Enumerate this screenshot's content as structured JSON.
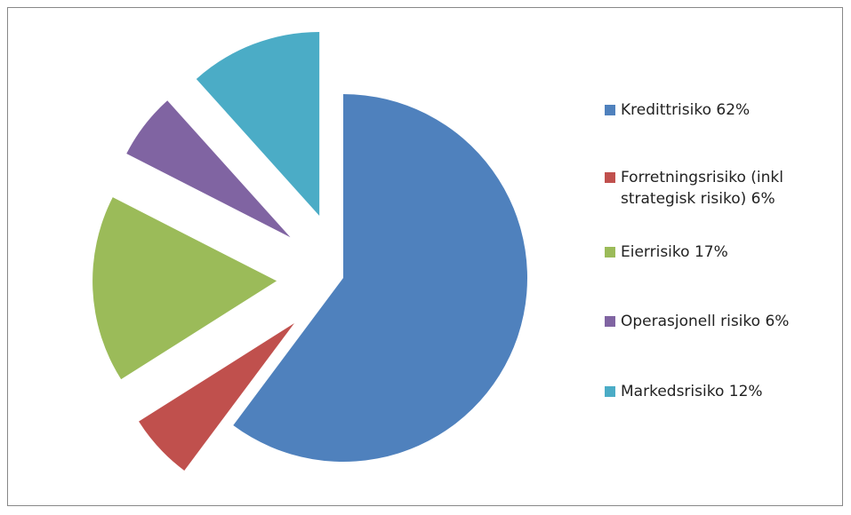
{
  "chart_data": {
    "type": "pie",
    "categories": [
      "Kredittrisiko 62%",
      "Forretningsrisiko (inkl strategisk risiko) 6%",
      "Eierrisiko 17%",
      "Operasjonell risiko 6%",
      "Markedsrisiko 12%"
    ],
    "values": [
      62,
      6,
      17,
      6,
      12
    ],
    "colors": [
      "#4f81bd",
      "#c0504d",
      "#9bbb59",
      "#8064a2",
      "#4bacc6"
    ]
  }
}
